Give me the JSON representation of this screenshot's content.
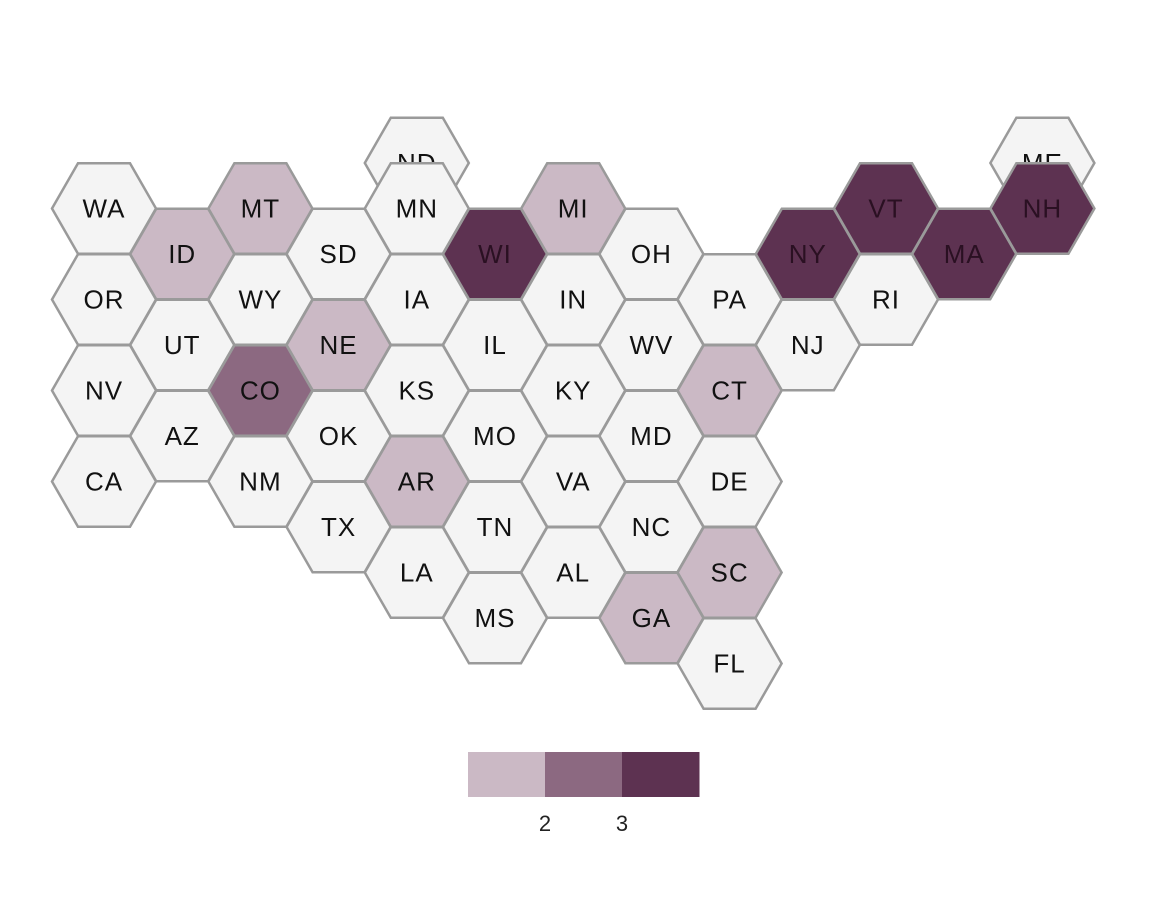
{
  "colors": {
    "none": "#f4f4f4",
    "level_1": "#cbb9c5",
    "level_2": "#8c6981",
    "level_3": "#5d3251",
    "border": "#9a9a9a",
    "label": "#111111"
  },
  "states": [
    {
      "abbr": "ND",
      "row": 0,
      "col": 4,
      "level": 0
    },
    {
      "abbr": "ME",
      "row": 0,
      "col": 12,
      "level": 0
    },
    {
      "abbr": "WA",
      "row": 1,
      "col": 0,
      "level": 0
    },
    {
      "abbr": "MT",
      "row": 1,
      "col": 2,
      "level": 1
    },
    {
      "abbr": "MN",
      "row": 1,
      "col": 4,
      "level": 0
    },
    {
      "abbr": "MI",
      "row": 1,
      "col": 6,
      "level": 1
    },
    {
      "abbr": "VT",
      "row": 1,
      "col": 10,
      "level": 3
    },
    {
      "abbr": "NH",
      "row": 1,
      "col": 12,
      "level": 3
    },
    {
      "abbr": "ID",
      "row": 2,
      "col": 1,
      "level": 1
    },
    {
      "abbr": "SD",
      "row": 2,
      "col": 3,
      "level": 0
    },
    {
      "abbr": "WI",
      "row": 2,
      "col": 5,
      "level": 3
    },
    {
      "abbr": "OH",
      "row": 2,
      "col": 7,
      "level": 0
    },
    {
      "abbr": "NY",
      "row": 2,
      "col": 9,
      "level": 3
    },
    {
      "abbr": "MA",
      "row": 2,
      "col": 11,
      "level": 3
    },
    {
      "abbr": "OR",
      "row": 3,
      "col": 0,
      "level": 0
    },
    {
      "abbr": "WY",
      "row": 3,
      "col": 2,
      "level": 0
    },
    {
      "abbr": "IA",
      "row": 3,
      "col": 4,
      "level": 0
    },
    {
      "abbr": "IN",
      "row": 3,
      "col": 6,
      "level": 0
    },
    {
      "abbr": "PA",
      "row": 3,
      "col": 8,
      "level": 0
    },
    {
      "abbr": "RI",
      "row": 3,
      "col": 10,
      "level": 0
    },
    {
      "abbr": "UT",
      "row": 4,
      "col": 1,
      "level": 0
    },
    {
      "abbr": "NE",
      "row": 4,
      "col": 3,
      "level": 1
    },
    {
      "abbr": "IL",
      "row": 4,
      "col": 5,
      "level": 0
    },
    {
      "abbr": "WV",
      "row": 4,
      "col": 7,
      "level": 0
    },
    {
      "abbr": "NJ",
      "row": 4,
      "col": 9,
      "level": 0
    },
    {
      "abbr": "NV",
      "row": 5,
      "col": 0,
      "level": 0
    },
    {
      "abbr": "CO",
      "row": 5,
      "col": 2,
      "level": 2
    },
    {
      "abbr": "KS",
      "row": 5,
      "col": 4,
      "level": 0
    },
    {
      "abbr": "KY",
      "row": 5,
      "col": 6,
      "level": 0
    },
    {
      "abbr": "CT",
      "row": 5,
      "col": 8,
      "level": 1
    },
    {
      "abbr": "AZ",
      "row": 6,
      "col": 1,
      "level": 0
    },
    {
      "abbr": "OK",
      "row": 6,
      "col": 3,
      "level": 0
    },
    {
      "abbr": "MO",
      "row": 6,
      "col": 5,
      "level": 0
    },
    {
      "abbr": "MD",
      "row": 6,
      "col": 7,
      "level": 0
    },
    {
      "abbr": "CA",
      "row": 7,
      "col": 0,
      "level": 0
    },
    {
      "abbr": "NM",
      "row": 7,
      "col": 2,
      "level": 0
    },
    {
      "abbr": "AR",
      "row": 7,
      "col": 4,
      "level": 1
    },
    {
      "abbr": "VA",
      "row": 7,
      "col": 6,
      "level": 0
    },
    {
      "abbr": "DE",
      "row": 7,
      "col": 8,
      "level": 0
    },
    {
      "abbr": "TX",
      "row": 8,
      "col": 3,
      "level": 0
    },
    {
      "abbr": "TN",
      "row": 8,
      "col": 5,
      "level": 0
    },
    {
      "abbr": "NC",
      "row": 8,
      "col": 7,
      "level": 0
    },
    {
      "abbr": "LA",
      "row": 9,
      "col": 4,
      "level": 0
    },
    {
      "abbr": "AL",
      "row": 9,
      "col": 6,
      "level": 0
    },
    {
      "abbr": "SC",
      "row": 9,
      "col": 8,
      "level": 1
    },
    {
      "abbr": "MS",
      "row": 10,
      "col": 5,
      "level": 0
    },
    {
      "abbr": "GA",
      "row": 10,
      "col": 7,
      "level": 1
    },
    {
      "abbr": "FL",
      "row": 11,
      "col": 8,
      "level": 0
    }
  ],
  "legend": {
    "levels": [
      1,
      2,
      3
    ],
    "tick_labels": [
      "2",
      "3"
    ]
  }
}
